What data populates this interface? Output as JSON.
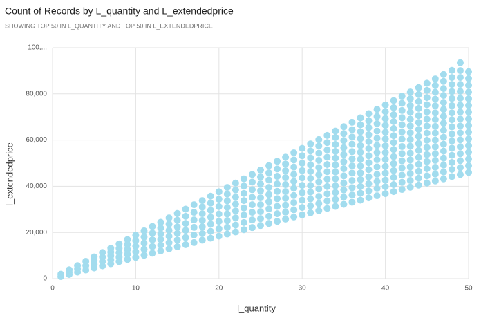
{
  "chart_data": {
    "type": "scatter",
    "title": "Count of Records by L_quantity and L_extendedprice",
    "subtitle": "SHOWING TOP 50 IN L_QUANTITY AND TOP 50 IN L_EXTENDEDPRICE",
    "x_label": "l_quantity",
    "y_label": "l_extendedprice",
    "color": "#a2dcee",
    "grid": true,
    "xlim": [
      0,
      50
    ],
    "xticks": [
      0,
      10,
      20,
      30,
      40,
      50
    ],
    "ylim": [
      0,
      100000
    ],
    "yticks": [
      0,
      {
        "value": 20000,
        "label": "20,000"
      },
      {
        "value": 40000,
        "label": "40,000"
      },
      {
        "value": 60000,
        "label": "60,000"
      },
      {
        "value": 80000,
        "label": "80,000"
      },
      {
        "value": 100000,
        "label": "100,..."
      }
    ],
    "columns": [
      {
        "x": 1,
        "values": [
          900,
          1900
        ]
      },
      {
        "x": 2,
        "values": [
          1800,
          2800,
          3800
        ]
      },
      {
        "x": 3,
        "values": [
          2800,
          4200,
          5600
        ]
      },
      {
        "x": 4,
        "values": [
          3700,
          5600,
          7500
        ]
      },
      {
        "x": 5,
        "values": [
          4600,
          6200,
          7800,
          9400
        ]
      },
      {
        "x": 6,
        "values": [
          5500,
          7400,
          9400,
          11300
        ]
      },
      {
        "x": 7,
        "values": [
          6400,
          8100,
          9800,
          11500,
          13200
        ]
      },
      {
        "x": 8,
        "values": [
          7400,
          9300,
          11200,
          13100,
          15000
        ]
      },
      {
        "x": 9,
        "values": [
          8300,
          10500,
          12600,
          14800,
          16900
        ]
      },
      {
        "x": 10,
        "values": [
          9200,
          11600,
          14000,
          16400,
          18800
        ]
      },
      {
        "x": 11,
        "values": [
          10100,
          12700,
          15400,
          18000,
          20700
        ]
      },
      {
        "x": 12,
        "values": [
          11000,
          13900,
          16800,
          19700,
          22600
        ]
      },
      {
        "x": 13,
        "values": [
          12000,
          14500,
          17000,
          19400,
          21900,
          24400
        ]
      },
      {
        "x": 14,
        "values": [
          12900,
          15600,
          18300,
          20900,
          23600,
          26300
        ]
      },
      {
        "x": 15,
        "values": [
          13800,
          16700,
          19600,
          22400,
          25300,
          28200
        ]
      },
      {
        "x": 16,
        "values": [
          14700,
          17800,
          20900,
          23900,
          27000,
          30100
        ]
      },
      {
        "x": 17,
        "values": [
          15600,
          18900,
          22200,
          25400,
          28700,
          32000
        ]
      },
      {
        "x": 18,
        "values": [
          16600,
          19500,
          22400,
          25200,
          28100,
          31000,
          33800
        ]
      },
      {
        "x": 19,
        "values": [
          17500,
          20500,
          23600,
          26600,
          29600,
          32700,
          35700
        ]
      },
      {
        "x": 20,
        "values": [
          18400,
          21600,
          24800,
          28000,
          31200,
          34400,
          37600
        ]
      },
      {
        "x": 21,
        "values": [
          19300,
          22200,
          25100,
          28000,
          30800,
          33700,
          36600,
          39500
        ]
      },
      {
        "x": 22,
        "values": [
          20200,
          23200,
          26300,
          29300,
          32300,
          35300,
          38400,
          41400
        ]
      },
      {
        "x": 23,
        "values": [
          21200,
          24300,
          27500,
          30600,
          33800,
          36900,
          40100,
          43200
        ]
      },
      {
        "x": 24,
        "values": [
          22100,
          25400,
          28700,
          32000,
          35200,
          38500,
          41800,
          45100
        ]
      },
      {
        "x": 25,
        "values": [
          23000,
          26000,
          29000,
          32000,
          35000,
          38000,
          41000,
          44000,
          47000
        ]
      },
      {
        "x": 26,
        "values": [
          23900,
          27000,
          30200,
          33300,
          36400,
          39500,
          42700,
          45800,
          48900
        ]
      },
      {
        "x": 27,
        "values": [
          24800,
          28100,
          31300,
          34600,
          37800,
          41000,
          44300,
          47500,
          50800
        ]
      },
      {
        "x": 28,
        "values": [
          25800,
          28800,
          31800,
          34800,
          37700,
          40700,
          43700,
          46700,
          49600,
          52600
        ]
      },
      {
        "x": 29,
        "values": [
          26700,
          29800,
          32900,
          36000,
          39100,
          42100,
          45200,
          48300,
          51400,
          54500
        ]
      },
      {
        "x": 30,
        "values": [
          27600,
          30800,
          34000,
          37200,
          40400,
          43600,
          46800,
          50000,
          53200,
          56400
        ]
      },
      {
        "x": 31,
        "values": [
          28500,
          31500,
          34500,
          37500,
          40400,
          43400,
          46400,
          49300,
          52300,
          55300,
          58300
        ]
      },
      {
        "x": 32,
        "values": [
          29400,
          32500,
          35600,
          38800,
          41900,
          45000,
          48100,
          51200,
          54300,
          57400,
          60200
        ]
      },
      {
        "x": 33,
        "values": [
          30400,
          33600,
          36700,
          39900,
          43100,
          46300,
          49400,
          52600,
          55700,
          58900,
          62000
        ]
      },
      {
        "x": 34,
        "values": [
          31300,
          34300,
          37300,
          40200,
          43200,
          46200,
          49200,
          52200,
          55100,
          58100,
          61100,
          63900
        ]
      },
      {
        "x": 35,
        "values": [
          32200,
          35300,
          38400,
          41400,
          44500,
          47600,
          50600,
          53700,
          56700,
          59800,
          62800,
          65800
        ]
      },
      {
        "x": 36,
        "values": [
          33100,
          36200,
          39400,
          42500,
          45700,
          48800,
          51900,
          55000,
          58200,
          61300,
          64500,
          67700
        ]
      },
      {
        "x": 37,
        "values": [
          34000,
          37000,
          39900,
          42900,
          45800,
          48800,
          51700,
          54700,
          57600,
          60600,
          63600,
          66600,
          69600
        ]
      },
      {
        "x": 38,
        "values": [
          35000,
          38000,
          41100,
          44100,
          47200,
          50200,
          53200,
          56300,
          59300,
          62300,
          65400,
          68400,
          71400
        ]
      },
      {
        "x": 39,
        "values": [
          35900,
          39000,
          42100,
          45200,
          48400,
          51500,
          54600,
          57700,
          60800,
          63900,
          67100,
          70200,
          73300
        ]
      },
      {
        "x": 40,
        "values": [
          36800,
          39800,
          42700,
          45700,
          48600,
          51600,
          54600,
          57500,
          60500,
          63400,
          66400,
          69300,
          72300,
          75200
        ]
      },
      {
        "x": 41,
        "values": [
          37700,
          40700,
          43800,
          46800,
          49800,
          52800,
          55900,
          58900,
          61900,
          65000,
          68000,
          71000,
          74000,
          77100
        ]
      },
      {
        "x": 42,
        "values": [
          38600,
          41700,
          44800,
          47900,
          51000,
          54100,
          57200,
          60400,
          63500,
          66600,
          69700,
          72800,
          75900,
          79000
        ]
      },
      {
        "x": 43,
        "values": [
          39600,
          42500,
          45500,
          48400,
          51400,
          54300,
          57300,
          60200,
          63100,
          66100,
          69000,
          72000,
          74900,
          77900,
          80800
        ]
      },
      {
        "x": 44,
        "values": [
          40500,
          43500,
          46500,
          49500,
          52500,
          55500,
          58500,
          61600,
          64600,
          67600,
          70600,
          73700,
          76700,
          79700,
          82700
        ]
      },
      {
        "x": 45,
        "values": [
          41400,
          44500,
          47600,
          50700,
          53700,
          56800,
          59900,
          63000,
          66100,
          69100,
          72200,
          75300,
          78400,
          81500,
          84600
        ]
      },
      {
        "x": 46,
        "values": [
          42300,
          45300,
          48200,
          51200,
          54100,
          57100,
          60000,
          63000,
          65900,
          68900,
          71800,
          74800,
          77700,
          80700,
          83600,
          86500
        ]
      },
      {
        "x": 47,
        "values": [
          43200,
          46200,
          49200,
          52200,
          55200,
          58200,
          61200,
          64200,
          67300,
          70300,
          73300,
          76300,
          79300,
          82300,
          85400,
          88400
        ]
      },
      {
        "x": 48,
        "values": [
          44200,
          47300,
          50300,
          53400,
          56500,
          59600,
          62600,
          65700,
          68800,
          71800,
          74900,
          78000,
          81000,
          84100,
          87100,
          90200
        ]
      },
      {
        "x": 49,
        "values": [
          45100,
          48100,
          51100,
          54100,
          57100,
          60100,
          63100,
          66100,
          69100,
          72100,
          75100,
          78100,
          81100,
          84100,
          87100,
          90100,
          93500
        ]
      },
      {
        "x": 50,
        "values": [
          46000,
          48900,
          51800,
          54700,
          57600,
          60500,
          63400,
          66300,
          69200,
          72100,
          75000,
          77900,
          80800,
          83700,
          86600,
          89600
        ]
      }
    ]
  }
}
